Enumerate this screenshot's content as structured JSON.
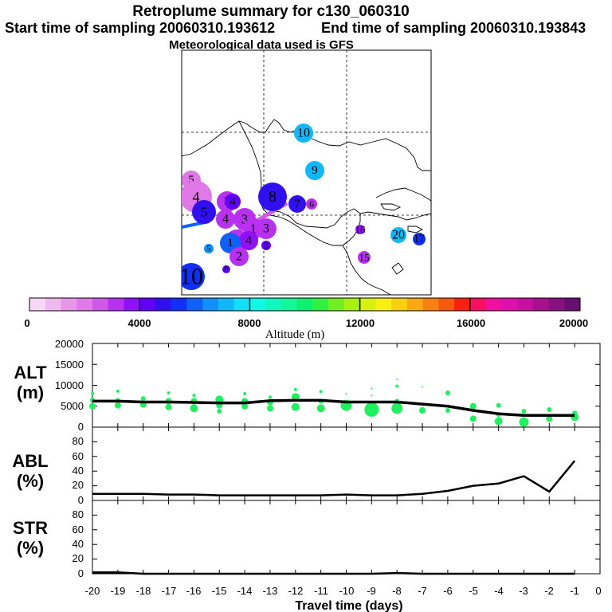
{
  "header": {
    "title": "Retroplume summary for c130_060310",
    "start_label": "Start time of sampling 20060310.193612",
    "end_label": "End time of sampling 20060310.193843",
    "met_label": "Meteorological data used is GFS"
  },
  "colorbar": {
    "ticks": [
      "0",
      "4000",
      "8000",
      "12000",
      "16000",
      "20000"
    ],
    "label": "Altitude (m)",
    "colors": [
      "#f8d8f8",
      "#f0b8f0",
      "#e898e8",
      "#e078e8",
      "#d058e8",
      "#b830f0",
      "#9010f8",
      "#6000f8",
      "#3010f0",
      "#1030f8",
      "#1060f8",
      "#1090f8",
      "#10b8f8",
      "#10e0f8",
      "#10f8e8",
      "#10f8c0",
      "#10f898",
      "#10f070",
      "#30f040",
      "#70f020",
      "#a8f010",
      "#d8f010",
      "#f8f010",
      "#f8d010",
      "#f8a810",
      "#f88010",
      "#f85810",
      "#f82010",
      "#f81060",
      "#f010a0",
      "#e010b0",
      "#c810a0",
      "#a81090",
      "#881080",
      "#681070"
    ]
  },
  "map": {
    "labels": [
      {
        "text": "10",
        "alt": 7400,
        "r": 12,
        "fs": 16
      },
      {
        "text": "9",
        "alt": 7400,
        "r": 12,
        "fs": 15
      },
      {
        "text": "5",
        "alt": 1800,
        "r": 12,
        "fs": 15
      },
      {
        "text": "4",
        "alt": 2200,
        "r": 20,
        "fs": 18
      },
      {
        "text": "5",
        "alt": 5000,
        "r": 15,
        "fs": 17
      },
      {
        "text": "5",
        "alt": 3000,
        "r": 13,
        "fs": 15
      },
      {
        "text": "4",
        "alt": 4400,
        "r": 10,
        "fs": 15
      },
      {
        "text": "8",
        "alt": 4800,
        "r": 18,
        "fs": 20
      },
      {
        "text": "7",
        "alt": 4800,
        "r": 11,
        "fs": 15
      },
      {
        "text": "6",
        "alt": 3000,
        "r": 7,
        "fs": 12
      },
      {
        "text": "3",
        "alt": 3000,
        "r": 14,
        "fs": 17
      },
      {
        "text": "4",
        "alt": 3200,
        "r": 12,
        "fs": 16
      },
      {
        "text": "1",
        "alt": 3000,
        "r": 13,
        "fs": 17
      },
      {
        "text": "3",
        "alt": 3000,
        "r": 13,
        "fs": 16
      },
      {
        "text": "2",
        "alt": 3000,
        "r": 14,
        "fs": 18
      },
      {
        "text": "4",
        "alt": 3600,
        "r": 12,
        "fs": 16
      },
      {
        "text": "1",
        "alt": 6200,
        "r": 13,
        "fs": 15
      },
      {
        "text": "2",
        "alt": 3000,
        "r": 12,
        "fs": 16
      },
      {
        "text": "3",
        "alt": 4400,
        "r": 6,
        "fs": 12
      },
      {
        "text": "5",
        "alt": 6800,
        "r": 6,
        "fs": 11
      },
      {
        "text": "9",
        "alt": 4200,
        "r": 5,
        "fs": 11
      },
      {
        "text": "10",
        "alt": 5400,
        "r": 17,
        "fs": 30
      },
      {
        "text": "16",
        "alt": 3600,
        "r": 6,
        "fs": 13
      },
      {
        "text": "20",
        "alt": 7400,
        "r": 10,
        "fs": 16
      },
      {
        "text": "17",
        "alt": 5400,
        "r": 8,
        "fs": 14
      },
      {
        "text": "15",
        "alt": 3000,
        "r": 8,
        "fs": 13
      }
    ]
  },
  "chart_data": [
    {
      "type": "scatter",
      "name": "ALT",
      "ylabel": "ALT",
      "yunit": "(m)",
      "ylim": [
        0,
        20000
      ],
      "yticks": [
        "0",
        "5000",
        "10000",
        "15000",
        "20000"
      ],
      "mean_line": {
        "x": [
          -20,
          -19,
          -18,
          -17,
          -16,
          -15,
          -14,
          -13,
          -12,
          -11,
          -10,
          -9,
          -8,
          -7,
          -6,
          -5,
          -4,
          -3,
          -2,
          -1
        ],
        "y": [
          6200,
          6200,
          6000,
          6000,
          5900,
          5800,
          5800,
          6300,
          6400,
          6400,
          6000,
          6000,
          6000,
          5500,
          5000,
          4000,
          3200,
          2800,
          2800,
          2800
        ]
      },
      "points": [
        {
          "x": -20,
          "y": 5000,
          "s": 4
        },
        {
          "x": -20,
          "y": 6500,
          "s": 3
        },
        {
          "x": -20,
          "y": 8000,
          "s": 2
        },
        {
          "x": -19,
          "y": 5200,
          "s": 4
        },
        {
          "x": -19,
          "y": 6400,
          "s": 3
        },
        {
          "x": -19,
          "y": 8600,
          "s": 2
        },
        {
          "x": -18,
          "y": 5400,
          "s": 4
        },
        {
          "x": -18,
          "y": 6800,
          "s": 3
        },
        {
          "x": -17,
          "y": 4800,
          "s": 4
        },
        {
          "x": -17,
          "y": 6200,
          "s": 4
        },
        {
          "x": -17,
          "y": 8200,
          "s": 2
        },
        {
          "x": -16,
          "y": 4500,
          "s": 5
        },
        {
          "x": -16,
          "y": 6200,
          "s": 4
        },
        {
          "x": -16,
          "y": 7600,
          "s": 2
        },
        {
          "x": -15,
          "y": 3800,
          "s": 3
        },
        {
          "x": -15,
          "y": 5200,
          "s": 4
        },
        {
          "x": -15,
          "y": 6600,
          "s": 5
        },
        {
          "x": -14,
          "y": 5000,
          "s": 4
        },
        {
          "x": -14,
          "y": 6200,
          "s": 4
        },
        {
          "x": -14,
          "y": 8000,
          "s": 2
        },
        {
          "x": -13,
          "y": 4500,
          "s": 4
        },
        {
          "x": -13,
          "y": 6000,
          "s": 4
        },
        {
          "x": -13,
          "y": 7200,
          "s": 2
        },
        {
          "x": -12,
          "y": 4800,
          "s": 5
        },
        {
          "x": -12,
          "y": 7200,
          "s": 5
        },
        {
          "x": -12,
          "y": 9000,
          "s": 2
        },
        {
          "x": -11,
          "y": 4500,
          "s": 5
        },
        {
          "x": -11,
          "y": 6200,
          "s": 3
        },
        {
          "x": -11,
          "y": 8500,
          "s": 2
        },
        {
          "x": -10,
          "y": 5200,
          "s": 7
        },
        {
          "x": -10,
          "y": 8000,
          "s": 1
        },
        {
          "x": -9,
          "y": 4200,
          "s": 9
        },
        {
          "x": -9,
          "y": 7600,
          "s": 1
        },
        {
          "x": -9,
          "y": 9200,
          "s": 1
        },
        {
          "x": -8,
          "y": 4500,
          "s": 7
        },
        {
          "x": -8,
          "y": 6200,
          "s": 3
        },
        {
          "x": -8,
          "y": 9800,
          "s": 2
        },
        {
          "x": -8,
          "y": 11400,
          "s": 1
        },
        {
          "x": -7,
          "y": 4000,
          "s": 4
        },
        {
          "x": -7,
          "y": 9600,
          "s": 1
        },
        {
          "x": -6,
          "y": 4000,
          "s": 3
        },
        {
          "x": -6,
          "y": 8200,
          "s": 3
        },
        {
          "x": -5,
          "y": 2000,
          "s": 4
        },
        {
          "x": -5,
          "y": 5000,
          "s": 4
        },
        {
          "x": -4,
          "y": 1400,
          "s": 5
        },
        {
          "x": -4,
          "y": 3000,
          "s": 3
        },
        {
          "x": -4,
          "y": 5200,
          "s": 3
        },
        {
          "x": -3,
          "y": 1200,
          "s": 6
        },
        {
          "x": -3,
          "y": 3800,
          "s": 3
        },
        {
          "x": -2,
          "y": 2000,
          "s": 4
        },
        {
          "x": -2,
          "y": 4200,
          "s": 3
        },
        {
          "x": -1,
          "y": 2400,
          "s": 5
        },
        {
          "x": -1,
          "y": 3400,
          "s": 3
        }
      ]
    },
    {
      "type": "line",
      "name": "ABL",
      "ylabel": "ABL",
      "yunit": "(%)",
      "ylim": [
        0,
        100
      ],
      "yticks": [
        "0",
        "20",
        "40",
        "60",
        "80"
      ],
      "x": [
        -20,
        -19,
        -18,
        -17,
        -16,
        -15,
        -14,
        -13,
        -12,
        -11,
        -10,
        -9,
        -8,
        -7,
        -6,
        -5,
        -4,
        -3,
        -2,
        -1
      ],
      "y": [
        9,
        9,
        9,
        8,
        8,
        7,
        7,
        7,
        7,
        7,
        8,
        7,
        7,
        9,
        13,
        20,
        23,
        33,
        12,
        54
      ]
    },
    {
      "type": "line",
      "name": "STR",
      "ylabel": "STR",
      "yunit": "(%)",
      "ylim": [
        0,
        100
      ],
      "yticks": [
        "0",
        "20",
        "40",
        "60",
        "80"
      ],
      "x": [
        -20,
        -19,
        -18,
        -17,
        -16,
        -15,
        -14,
        -13,
        -12,
        -11,
        -10,
        -9,
        -8,
        -7,
        -6,
        -5,
        -4,
        -3,
        -2,
        -1
      ],
      "y": [
        2,
        2,
        0,
        0,
        0,
        0,
        0,
        0,
        0,
        0,
        0,
        0,
        1,
        0,
        0,
        0,
        0,
        0,
        0,
        0
      ]
    }
  ],
  "xaxis": {
    "label": "Travel time (days)",
    "ticks": [
      "-20",
      "-19",
      "-18",
      "-17",
      "-16",
      "-15",
      "-14",
      "-13",
      "-12",
      "-11",
      "-10",
      "-9",
      "-8",
      "-7",
      "-6",
      "-5",
      "-4",
      "-3",
      "-2",
      "-1",
      "0"
    ]
  }
}
